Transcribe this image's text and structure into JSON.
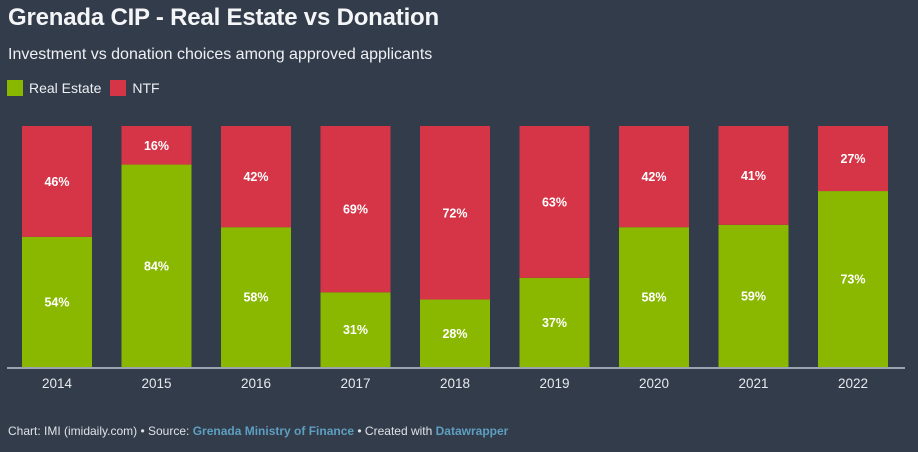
{
  "header": {
    "title": "Grenada CIP - Real Estate vs Donation",
    "subtitle": "Investment vs donation choices among approved applicants"
  },
  "legend": [
    {
      "label": "Real Estate",
      "color": "#8ab800"
    },
    {
      "label": "NTF",
      "color": "#d63447"
    }
  ],
  "footer": {
    "chart_prefix": "Chart: IMI (imidaily.com) • Source: ",
    "source_link": "Grenada Ministry of Finance",
    "created_prefix": " • Created with ",
    "created_link": "Datawrapper"
  },
  "colors": {
    "background": "#333c4b",
    "real_estate": "#8ab800",
    "ntf": "#d63447",
    "axis": "#9aa3ae",
    "link": "#5d9fc0"
  },
  "chart_data": {
    "type": "bar",
    "stacked": true,
    "title": "Grenada CIP - Real Estate vs Donation",
    "subtitle": "Investment vs donation choices among approved applicants",
    "xlabel": "",
    "ylabel": "",
    "ylim": [
      0,
      100
    ],
    "grid": false,
    "legend_position": "top-left",
    "categories": [
      "2014",
      "2015",
      "2016",
      "2017",
      "2018",
      "2019",
      "2020",
      "2021",
      "2022"
    ],
    "series": [
      {
        "name": "Real Estate",
        "color": "#8ab800",
        "values": [
          54,
          84,
          58,
          31,
          28,
          37,
          58,
          59,
          73
        ]
      },
      {
        "name": "NTF",
        "color": "#d63447",
        "values": [
          46,
          16,
          42,
          69,
          72,
          63,
          42,
          41,
          27
        ]
      }
    ],
    "value_suffix": "%"
  }
}
